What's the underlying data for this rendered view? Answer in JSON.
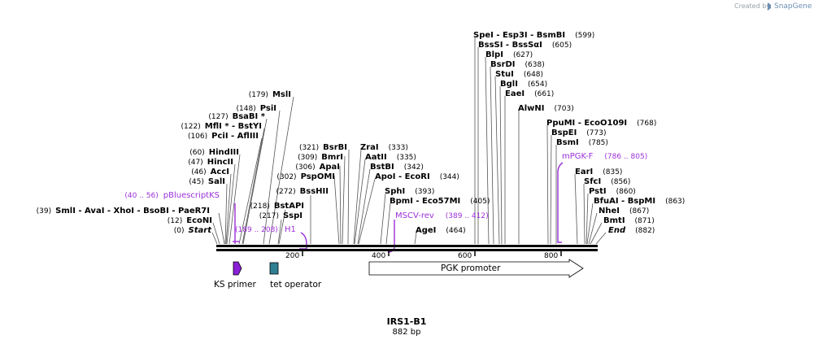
{
  "credit": {
    "prefix": "Created by",
    "brand": "SnapGene"
  },
  "plasmid": {
    "name": "IRS1-B1",
    "size_label": "882 bp"
  },
  "ruler": {
    "ticks": [
      "200",
      "400",
      "600",
      "800"
    ]
  },
  "labels": [
    {
      "pos": "(0)",
      "parts": [
        {
          "t": "Start",
          "i": true
        }
      ]
    },
    {
      "pos": "(12)",
      "parts": [
        {
          "t": "EcoNI"
        }
      ]
    },
    {
      "pos": "(39)",
      "parts": [
        {
          "t": "SmlI"
        },
        {
          "t": " - ",
          "d": true
        },
        {
          "t": "AvaI"
        },
        {
          "t": " - ",
          "d": true
        },
        {
          "t": "XhoI"
        },
        {
          "t": " - ",
          "d": true
        },
        {
          "t": "BsoBI"
        },
        {
          "t": " - ",
          "d": true
        },
        {
          "t": "PaeR7I"
        }
      ]
    },
    {
      "pos": "(45)",
      "parts": [
        {
          "t": "SalI"
        }
      ]
    },
    {
      "pos": "(46)",
      "parts": [
        {
          "t": "AccI"
        }
      ]
    },
    {
      "pos": "(47)",
      "parts": [
        {
          "t": "HincII"
        }
      ]
    },
    {
      "pos": "(60)",
      "parts": [
        {
          "t": "HindIII"
        }
      ]
    },
    {
      "pos": "(106)",
      "parts": [
        {
          "t": "PciI"
        },
        {
          "t": " - ",
          "d": true
        },
        {
          "t": "AflIII"
        }
      ]
    },
    {
      "pos": "(122)",
      "parts": [
        {
          "t": "MflI *"
        },
        {
          "t": " - ",
          "d": true
        },
        {
          "t": "BstYI"
        }
      ]
    },
    {
      "pos": "(127)",
      "parts": [
        {
          "t": "BsaBI *"
        }
      ]
    },
    {
      "pos": "(148)",
      "parts": [
        {
          "t": "PsiI"
        }
      ]
    },
    {
      "pos": "(179)",
      "parts": [
        {
          "t": "MslI"
        }
      ]
    },
    {
      "pos": "(217)",
      "parts": [
        {
          "t": "SspI"
        }
      ]
    },
    {
      "pos": "(218)",
      "parts": [
        {
          "t": "BstAPI"
        }
      ]
    },
    {
      "pos": "(272)",
      "parts": [
        {
          "t": "BssHII"
        }
      ]
    },
    {
      "pos": "(302)",
      "parts": [
        {
          "t": "PspOMI"
        }
      ]
    },
    {
      "pos": "(306)",
      "parts": [
        {
          "t": "ApaI"
        }
      ]
    },
    {
      "pos": "(309)",
      "parts": [
        {
          "t": "BmrI"
        }
      ]
    },
    {
      "pos": "(321)",
      "parts": [
        {
          "t": "BsrBI"
        }
      ]
    },
    {
      "pos": "(333)",
      "parts": [
        {
          "t": "ZraI"
        }
      ]
    },
    {
      "pos": "(335)",
      "parts": [
        {
          "t": "AatII"
        }
      ]
    },
    {
      "pos": "(342)",
      "parts": [
        {
          "t": "BstBI"
        }
      ]
    },
    {
      "pos": "(344)",
      "parts": [
        {
          "t": "ApoI"
        },
        {
          "t": " - ",
          "d": true
        },
        {
          "t": "EcoRI"
        }
      ]
    },
    {
      "pos": "(393)",
      "parts": [
        {
          "t": "SphI"
        }
      ]
    },
    {
      "pos": "(405)",
      "parts": [
        {
          "t": "BpmI"
        },
        {
          "t": " - ",
          "d": true
        },
        {
          "t": "Eco57MI"
        }
      ]
    },
    {
      "pos": "(464)",
      "parts": [
        {
          "t": "AgeI"
        }
      ]
    },
    {
      "pos": "(599)",
      "parts": [
        {
          "t": "SpeI"
        },
        {
          "t": " - ",
          "d": true
        },
        {
          "t": "Esp3I"
        },
        {
          "t": " - ",
          "d": true
        },
        {
          "t": "BsmBI"
        }
      ]
    },
    {
      "pos": "(605)",
      "parts": [
        {
          "t": "BssSI"
        },
        {
          "t": " - ",
          "d": true
        },
        {
          "t": "BssSαI"
        }
      ]
    },
    {
      "pos": "(627)",
      "parts": [
        {
          "t": "BlpI"
        }
      ]
    },
    {
      "pos": "(638)",
      "parts": [
        {
          "t": "BsrDI"
        }
      ]
    },
    {
      "pos": "(648)",
      "parts": [
        {
          "t": "StuI"
        }
      ]
    },
    {
      "pos": "(654)",
      "parts": [
        {
          "t": "BglI"
        }
      ]
    },
    {
      "pos": "(661)",
      "parts": [
        {
          "t": "EaeI"
        }
      ]
    },
    {
      "pos": "(703)",
      "parts": [
        {
          "t": "AlwNI"
        }
      ]
    },
    {
      "pos": "(768)",
      "parts": [
        {
          "t": "PpuMI"
        },
        {
          "t": " - ",
          "d": true
        },
        {
          "t": "EcoO109I"
        }
      ]
    },
    {
      "pos": "(773)",
      "parts": [
        {
          "t": "BspEI"
        }
      ]
    },
    {
      "pos": "(785)",
      "parts": [
        {
          "t": "BsmI"
        }
      ]
    },
    {
      "pos": "(835)",
      "parts": [
        {
          "t": "EarI"
        }
      ]
    },
    {
      "pos": "(856)",
      "parts": [
        {
          "t": "SfcI"
        }
      ]
    },
    {
      "pos": "(860)",
      "parts": [
        {
          "t": "PstI"
        }
      ]
    },
    {
      "pos": "(863)",
      "parts": [
        {
          "t": "BfuAI"
        },
        {
          "t": " - ",
          "d": true
        },
        {
          "t": "BspMI"
        }
      ]
    },
    {
      "pos": "(867)",
      "parts": [
        {
          "t": "NheI"
        }
      ]
    },
    {
      "pos": "(871)",
      "parts": [
        {
          "t": "BmtI"
        }
      ]
    },
    {
      "pos": "(882)",
      "parts": [
        {
          "t": "End",
          "i": true
        }
      ]
    }
  ],
  "primers": [
    {
      "name": "pBluescriptKS",
      "range": "(40 .. 56)"
    },
    {
      "name": "H1",
      "range": "(189 .. 208)"
    },
    {
      "name": "MSCV-rev",
      "range": "(389 .. 412)"
    },
    {
      "name": "mPGK-F",
      "range": "(786 .. 805)"
    }
  ],
  "features": [
    {
      "name": "KS primer",
      "color": "#8b1fd6"
    },
    {
      "name": "tet operator",
      "color": "#2f7f93"
    },
    {
      "name": "PGK promoter",
      "color": "#ffffff"
    }
  ],
  "colors": {
    "primer": "#9b30d9",
    "line": "#000000",
    "leader": "#555555"
  }
}
